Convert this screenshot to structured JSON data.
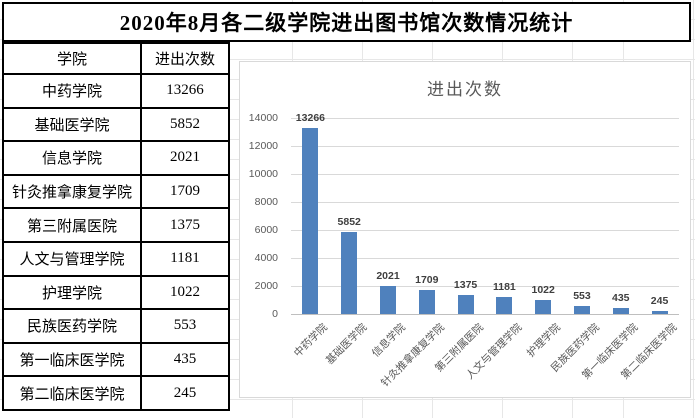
{
  "title": "2020年8月各二级学院进出图书馆次数情况统计",
  "table": {
    "headers": [
      "学院",
      "进出次数"
    ],
    "rows": [
      [
        "中药学院",
        "13266"
      ],
      [
        "基础医学院",
        "5852"
      ],
      [
        "信息学院",
        "2021"
      ],
      [
        "针灸推拿康复学院",
        "1709"
      ],
      [
        "第三附属医院",
        "1375"
      ],
      [
        "人文与管理学院",
        "1181"
      ],
      [
        "护理学院",
        "1022"
      ],
      [
        "民族医药学院",
        "553"
      ],
      [
        "第一临床医学院",
        "435"
      ],
      [
        "第二临床医学院",
        "245"
      ]
    ]
  },
  "chart_data": {
    "type": "bar",
    "title": "进出次数",
    "categories": [
      "中药学院",
      "基础医学院",
      "信息学院",
      "针灸推拿康复学院",
      "第三附属医院",
      "人文与管理学院",
      "护理学院",
      "民族医药学院",
      "第一临床医学院",
      "第二临床医学院"
    ],
    "values": [
      13266,
      5852,
      2021,
      1709,
      1375,
      1181,
      1022,
      553,
      435,
      245
    ],
    "xlabel": "",
    "ylabel": "",
    "ylim": [
      0,
      14000
    ],
    "yticks": [
      0,
      2000,
      4000,
      6000,
      8000,
      10000,
      12000,
      14000
    ],
    "legend": "none",
    "gridlines": true,
    "data_labels": true,
    "bar_color": "#4F81BD",
    "tick_label_color": "#595959",
    "data_label_color": "#3f3f3f",
    "gridline_color": "#d9d9d9"
  }
}
